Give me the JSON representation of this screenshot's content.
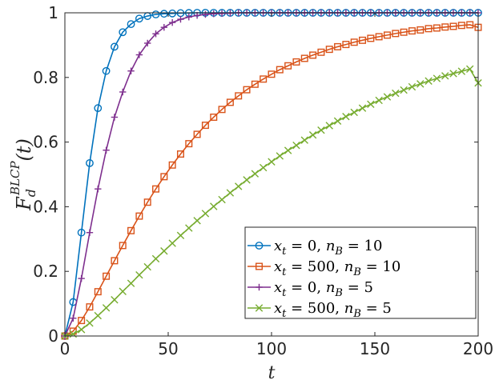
{
  "chart_data": {
    "type": "line",
    "xlabel": "t",
    "ylabel": {
      "base": "F",
      "sub": "d",
      "sup": "BLCP",
      "arg": "(t)"
    },
    "xlim": [
      0,
      200
    ],
    "ylim": [
      0,
      1
    ],
    "xticks": [
      "0",
      "50",
      "100",
      "150",
      "200"
    ],
    "yticks": [
      "0",
      "0.2",
      "0.4",
      "0.6",
      "0.8",
      "1"
    ],
    "grid": false,
    "legend_position": "lower-right",
    "colors": [
      "#0072BD",
      "#D95319",
      "#7E2F8E",
      "#77AC30"
    ],
    "series": [
      {
        "name": "x_t = 0, n_B = 10",
        "legend": {
          "p1": "x",
          "p1sub": "t",
          "p2": " = 0, ",
          "p3": "n",
          "p3sub": "B",
          "p4": " = 10"
        },
        "color": "#0072BD",
        "marker": "circle",
        "x": [
          0,
          4,
          8,
          12,
          16,
          20,
          24,
          28,
          32,
          36,
          40,
          44,
          48,
          52,
          56,
          60,
          64,
          68,
          72,
          76,
          80,
          84,
          88,
          92,
          96,
          100,
          104,
          108,
          112,
          116,
          120,
          124,
          128,
          132,
          136,
          140,
          144,
          148,
          152,
          156,
          160,
          164,
          168,
          172,
          176,
          180,
          184,
          188,
          192,
          196,
          200
        ],
        "y": [
          0,
          0.105,
          0.32,
          0.535,
          0.705,
          0.82,
          0.895,
          0.94,
          0.965,
          0.982,
          0.99,
          0.995,
          0.997,
          0.998,
          0.999,
          0.9995,
          1,
          1,
          1,
          1,
          1,
          1,
          1,
          1,
          1,
          1,
          1,
          1,
          1,
          1,
          1,
          1,
          1,
          1,
          1,
          1,
          1,
          1,
          1,
          1,
          1,
          1,
          1,
          1,
          1,
          1,
          1,
          1,
          1,
          1,
          1
        ]
      },
      {
        "name": "x_t = 500, n_B = 10",
        "legend": {
          "p1": "x",
          "p1sub": "t",
          "p2": " = 500, ",
          "p3": "n",
          "p3sub": "B",
          "p4": " = 10"
        },
        "color": "#D95319",
        "marker": "square",
        "x": [
          0,
          4,
          8,
          12,
          16,
          20,
          24,
          28,
          32,
          36,
          40,
          44,
          48,
          52,
          56,
          60,
          64,
          68,
          72,
          76,
          80,
          84,
          88,
          92,
          96,
          100,
          104,
          108,
          112,
          116,
          120,
          124,
          128,
          132,
          136,
          140,
          144,
          148,
          152,
          156,
          160,
          164,
          168,
          172,
          176,
          180,
          184,
          188,
          192,
          196,
          200
        ],
        "y": [
          0,
          0.015,
          0.048,
          0.09,
          0.137,
          0.185,
          0.233,
          0.28,
          0.326,
          0.371,
          0.414,
          0.455,
          0.493,
          0.529,
          0.563,
          0.595,
          0.624,
          0.652,
          0.677,
          0.701,
          0.723,
          0.743,
          0.762,
          0.779,
          0.795,
          0.81,
          0.824,
          0.836,
          0.848,
          0.859,
          0.869,
          0.878,
          0.887,
          0.895,
          0.902,
          0.909,
          0.915,
          0.921,
          0.926,
          0.931,
          0.936,
          0.94,
          0.944,
          0.947,
          0.951,
          0.953,
          0.956,
          0.958,
          0.961,
          0.963,
          0.955
        ]
      },
      {
        "name": "x_t = 0, n_B = 5",
        "legend": {
          "p1": "x",
          "p1sub": "t",
          "p2": " = 0, ",
          "p3": "n",
          "p3sub": "B",
          "p4": " = 5"
        },
        "color": "#7E2F8E",
        "marker": "plus",
        "x": [
          0,
          4,
          8,
          12,
          16,
          20,
          24,
          28,
          32,
          36,
          40,
          44,
          48,
          52,
          56,
          60,
          64,
          68,
          72,
          76,
          80,
          84,
          88,
          92,
          96,
          100,
          104,
          108,
          112,
          116,
          120,
          124,
          128,
          132,
          136,
          140,
          144,
          148,
          152,
          156,
          160,
          164,
          168,
          172,
          176,
          180,
          184,
          188,
          192,
          196,
          200
        ],
        "y": [
          0,
          0.055,
          0.178,
          0.32,
          0.455,
          0.575,
          0.677,
          0.755,
          0.82,
          0.87,
          0.906,
          0.935,
          0.955,
          0.97,
          0.98,
          0.987,
          0.992,
          0.995,
          0.997,
          0.998,
          0.999,
          1,
          1,
          1,
          1,
          1,
          1,
          1,
          1,
          1,
          1,
          1,
          1,
          1,
          1,
          1,
          1,
          1,
          1,
          1,
          1,
          1,
          1,
          1,
          1,
          1,
          1,
          1,
          1,
          1,
          1
        ]
      },
      {
        "name": "x_t = 500, n_B = 5",
        "legend": {
          "p1": "x",
          "p1sub": "t",
          "p2": " = 500, ",
          "p3": "n",
          "p3sub": "B",
          "p4": " = 5"
        },
        "color": "#77AC30",
        "marker": "x",
        "x": [
          0,
          4,
          8,
          12,
          16,
          20,
          24,
          28,
          32,
          36,
          40,
          44,
          48,
          52,
          56,
          60,
          64,
          68,
          72,
          76,
          80,
          84,
          88,
          92,
          96,
          100,
          104,
          108,
          112,
          116,
          120,
          124,
          128,
          132,
          136,
          140,
          144,
          148,
          152,
          156,
          160,
          164,
          168,
          172,
          176,
          180,
          184,
          188,
          192,
          196,
          200
        ],
        "y": [
          0,
          0.006,
          0.02,
          0.04,
          0.063,
          0.087,
          0.112,
          0.138,
          0.163,
          0.189,
          0.214,
          0.239,
          0.263,
          0.287,
          0.311,
          0.334,
          0.357,
          0.379,
          0.401,
          0.422,
          0.443,
          0.463,
          0.483,
          0.502,
          0.521,
          0.539,
          0.557,
          0.574,
          0.59,
          0.606,
          0.622,
          0.637,
          0.651,
          0.665,
          0.679,
          0.692,
          0.705,
          0.717,
          0.729,
          0.74,
          0.751,
          0.761,
          0.771,
          0.78,
          0.789,
          0.797,
          0.805,
          0.812,
          0.819,
          0.826,
          0.783
        ]
      }
    ]
  }
}
